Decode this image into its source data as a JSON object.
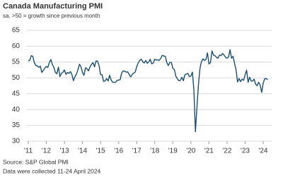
{
  "chart_data": {
    "type": "line",
    "title": "Canada Manufacturing PMI",
    "subtitle": "sa, >50 = growth since previous month",
    "source": "Source: S&P Global PMI",
    "note": "Data were collected 11-24 April 2024",
    "categories": [
      "'11",
      null,
      null,
      null,
      null,
      null,
      null,
      null,
      null,
      null,
      null,
      null,
      "'12",
      null,
      null,
      null,
      null,
      null,
      null,
      null,
      null,
      null,
      null,
      null,
      "'13",
      null,
      null,
      null,
      null,
      null,
      null,
      null,
      null,
      null,
      null,
      null,
      "'14",
      null,
      null,
      null,
      null,
      null,
      null,
      null,
      null,
      null,
      null,
      null,
      "'15",
      null,
      null,
      null,
      null,
      null,
      null,
      null,
      null,
      null,
      null,
      null,
      "'16",
      null,
      null,
      null,
      null,
      null,
      null,
      null,
      null,
      null,
      null,
      null,
      "'17",
      null,
      null,
      null,
      null,
      null,
      null,
      null,
      null,
      null,
      null,
      null,
      "'18",
      null,
      null,
      null,
      null,
      null,
      null,
      null,
      null,
      null,
      null,
      null,
      "'19",
      null,
      null,
      null,
      null,
      null,
      null,
      null,
      null,
      null,
      null,
      null,
      "'20",
      null,
      null,
      null,
      null,
      null,
      null,
      null,
      null,
      null,
      null,
      null,
      "'21",
      null,
      null,
      null,
      null,
      null,
      null,
      null,
      null,
      null,
      null,
      null,
      "'22",
      null,
      null,
      null,
      null,
      null,
      null,
      null,
      null,
      null,
      null,
      null,
      "'23",
      null,
      null,
      null,
      null,
      null,
      null,
      null,
      null,
      null,
      null,
      null,
      "'24",
      null,
      null,
      null
    ],
    "series": [
      {
        "name": "Canada Manufacturing PMI",
        "color": "#1b4f72",
        "values": [
          55.4,
          55.6,
          57.0,
          56.8,
          54.8,
          53.9,
          53.8,
          53.3,
          53.7,
          51.7,
          52.4,
          53.1,
          53.6,
          53.3,
          54.9,
          55.8,
          54.2,
          53.3,
          51.7,
          51.3,
          53.4,
          50.4,
          51.4,
          51.8,
          52.5,
          51.1,
          51.7,
          51.4,
          52.0,
          51.0,
          49.1,
          50.4,
          51.2,
          52.6,
          54.3,
          53.5,
          51.7,
          50.8,
          53.2,
          52.9,
          52.2,
          53.5,
          54.3,
          54.8,
          53.5,
          55.3,
          55.3,
          53.9,
          51.0,
          51.0,
          48.9,
          49.0,
          49.8,
          49.0,
          50.8,
          49.4,
          48.6,
          48.6,
          48.6,
          49.2,
          49.3,
          49.4,
          51.5,
          52.2,
          52.1,
          51.8,
          51.9,
          51.1,
          50.3,
          51.1,
          51.5,
          51.8,
          53.5,
          54.7,
          55.5,
          55.9,
          55.1,
          54.7,
          55.5,
          54.6,
          55.0,
          55.9,
          54.4,
          54.7,
          55.9,
          55.6,
          55.7,
          55.5,
          56.2,
          57.1,
          56.9,
          56.8,
          54.8,
          53.9,
          54.9,
          54.9,
          53.0,
          52.6,
          50.5,
          49.7,
          49.1,
          49.2,
          50.2,
          49.1,
          51.0,
          51.2,
          51.4,
          50.4,
          50.6,
          51.8,
          46.1,
          33.0,
          40.6,
          47.8,
          52.9,
          55.1,
          56.0,
          55.5,
          55.8,
          57.9,
          54.4,
          54.8,
          58.5,
          57.2,
          57.0,
          56.5,
          56.2,
          57.2,
          57.0,
          57.7,
          57.2,
          56.5,
          56.2,
          56.6,
          58.9,
          56.2,
          56.8,
          54.6,
          52.5,
          48.7,
          49.8,
          48.8,
          49.6,
          49.2,
          51.0,
          52.4,
          48.6,
          50.2,
          49.0,
          49.0,
          49.6,
          48.0,
          47.5,
          48.6,
          47.7,
          45.4,
          48.3,
          49.7,
          49.8,
          49.4
        ]
      }
    ],
    "ylim": [
      30,
      65
    ],
    "yticks": [
      30,
      35,
      40,
      45,
      50,
      55,
      60,
      65
    ],
    "grid": true
  }
}
